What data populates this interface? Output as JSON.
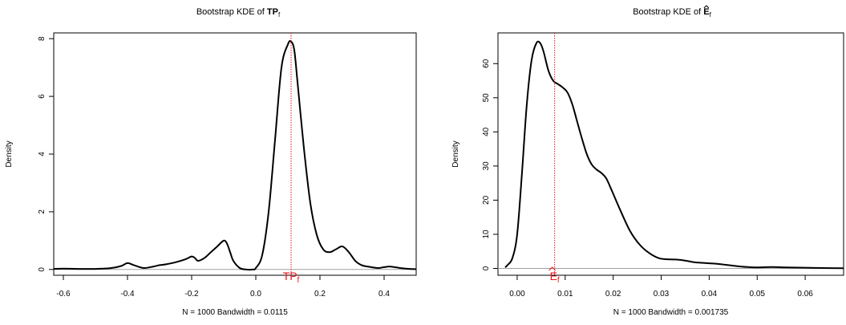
{
  "chart_data": [
    {
      "type": "line",
      "title": "Bootstrap KDE of ",
      "title_symbol": "TP",
      "title_sub": "f",
      "xlabel": "N = 1000   Bandwidth = 0.0115",
      "ylabel": "Density",
      "xlim": [
        -0.63,
        0.5
      ],
      "ylim": [
        -0.2,
        8.2
      ],
      "x_ticks": [
        -0.6,
        -0.4,
        -0.2,
        0.0,
        0.2,
        0.4
      ],
      "x_tick_labels": [
        "-0.6",
        "-0.4",
        "-0.2",
        "0.0",
        "0.2",
        "0.4"
      ],
      "y_ticks": [
        0,
        2,
        4,
        6,
        8
      ],
      "y_tick_labels": [
        "0",
        "2",
        "4",
        "6",
        "8"
      ],
      "grid": false,
      "line_color": "#000000",
      "marker_color": "#e8141c",
      "vline_x": 0.11,
      "annotation": {
        "text": "TP",
        "sub": "f",
        "hat": false
      },
      "series": [
        {
          "x": [
            -0.63,
            -0.6,
            -0.55,
            -0.5,
            -0.45,
            -0.42,
            -0.4,
            -0.38,
            -0.35,
            -0.32,
            -0.3,
            -0.28,
            -0.25,
            -0.22,
            -0.2,
            -0.19,
            -0.18,
            -0.16,
            -0.14,
            -0.12,
            -0.1,
            -0.09,
            -0.08,
            -0.07,
            -0.05,
            -0.03,
            -0.01,
            0.0,
            0.02,
            0.04,
            0.06,
            0.08,
            0.1,
            0.11,
            0.12,
            0.13,
            0.15,
            0.17,
            0.19,
            0.21,
            0.23,
            0.25,
            0.27,
            0.29,
            0.31,
            0.33,
            0.35,
            0.38,
            0.4,
            0.42,
            0.45,
            0.48,
            0.5
          ],
          "y": [
            0.02,
            0.03,
            0.02,
            0.02,
            0.05,
            0.12,
            0.22,
            0.15,
            0.05,
            0.1,
            0.15,
            0.18,
            0.25,
            0.35,
            0.45,
            0.4,
            0.3,
            0.4,
            0.6,
            0.8,
            1.0,
            0.9,
            0.6,
            0.3,
            0.05,
            0.0,
            0.0,
            0.05,
            0.5,
            2.0,
            4.5,
            7.0,
            7.8,
            7.9,
            7.6,
            6.5,
            4.2,
            2.3,
            1.2,
            0.7,
            0.6,
            0.7,
            0.8,
            0.6,
            0.3,
            0.15,
            0.1,
            0.05,
            0.08,
            0.1,
            0.05,
            0.02,
            0.01
          ]
        }
      ]
    },
    {
      "type": "line",
      "title": "Bootstrap KDE of ",
      "title_symbol": "E",
      "title_sub": "f",
      "title_hat": true,
      "xlabel": "N = 1000   Bandwidth = 0.001735",
      "ylabel": "Density",
      "xlim": [
        -0.004,
        0.068
      ],
      "ylim": [
        -2,
        69
      ],
      "x_ticks": [
        0.0,
        0.01,
        0.02,
        0.03,
        0.04,
        0.05,
        0.06
      ],
      "x_tick_labels": [
        "0.00",
        "0.01",
        "0.02",
        "0.03",
        "0.04",
        "0.05",
        "0.06"
      ],
      "y_ticks": [
        0,
        10,
        20,
        30,
        40,
        50,
        60
      ],
      "y_tick_labels": [
        "0",
        "10",
        "20",
        "30",
        "40",
        "50",
        "60"
      ],
      "grid": false,
      "line_color": "#000000",
      "marker_color": "#e8141c",
      "vline_x": 0.0078,
      "annotation": {
        "text": "E",
        "sub": "f",
        "hat": true
      },
      "series": [
        {
          "x": [
            -0.0025,
            -0.002,
            -0.001,
            0.0,
            0.001,
            0.002,
            0.003,
            0.004,
            0.0048,
            0.0055,
            0.0065,
            0.0075,
            0.0085,
            0.0095,
            0.0105,
            0.0115,
            0.0125,
            0.0135,
            0.0145,
            0.0155,
            0.0165,
            0.0175,
            0.0185,
            0.0195,
            0.0215,
            0.0235,
            0.0255,
            0.0275,
            0.0295,
            0.031,
            0.033,
            0.035,
            0.037,
            0.04,
            0.042,
            0.045,
            0.048,
            0.05,
            0.053,
            0.056,
            0.06,
            0.065,
            0.068
          ],
          "y": [
            0.3,
            1.0,
            3.0,
            10.0,
            28.0,
            48.0,
            61.0,
            66.0,
            66.0,
            63.5,
            58.0,
            55.0,
            54.0,
            53.0,
            51.5,
            48.0,
            43.0,
            38.0,
            33.5,
            30.5,
            29.0,
            28.0,
            26.5,
            23.5,
            17.0,
            11.0,
            7.0,
            4.5,
            3.0,
            2.7,
            2.6,
            2.3,
            1.8,
            1.5,
            1.3,
            0.8,
            0.4,
            0.3,
            0.4,
            0.3,
            0.2,
            0.1,
            0.05
          ]
        }
      ]
    }
  ]
}
